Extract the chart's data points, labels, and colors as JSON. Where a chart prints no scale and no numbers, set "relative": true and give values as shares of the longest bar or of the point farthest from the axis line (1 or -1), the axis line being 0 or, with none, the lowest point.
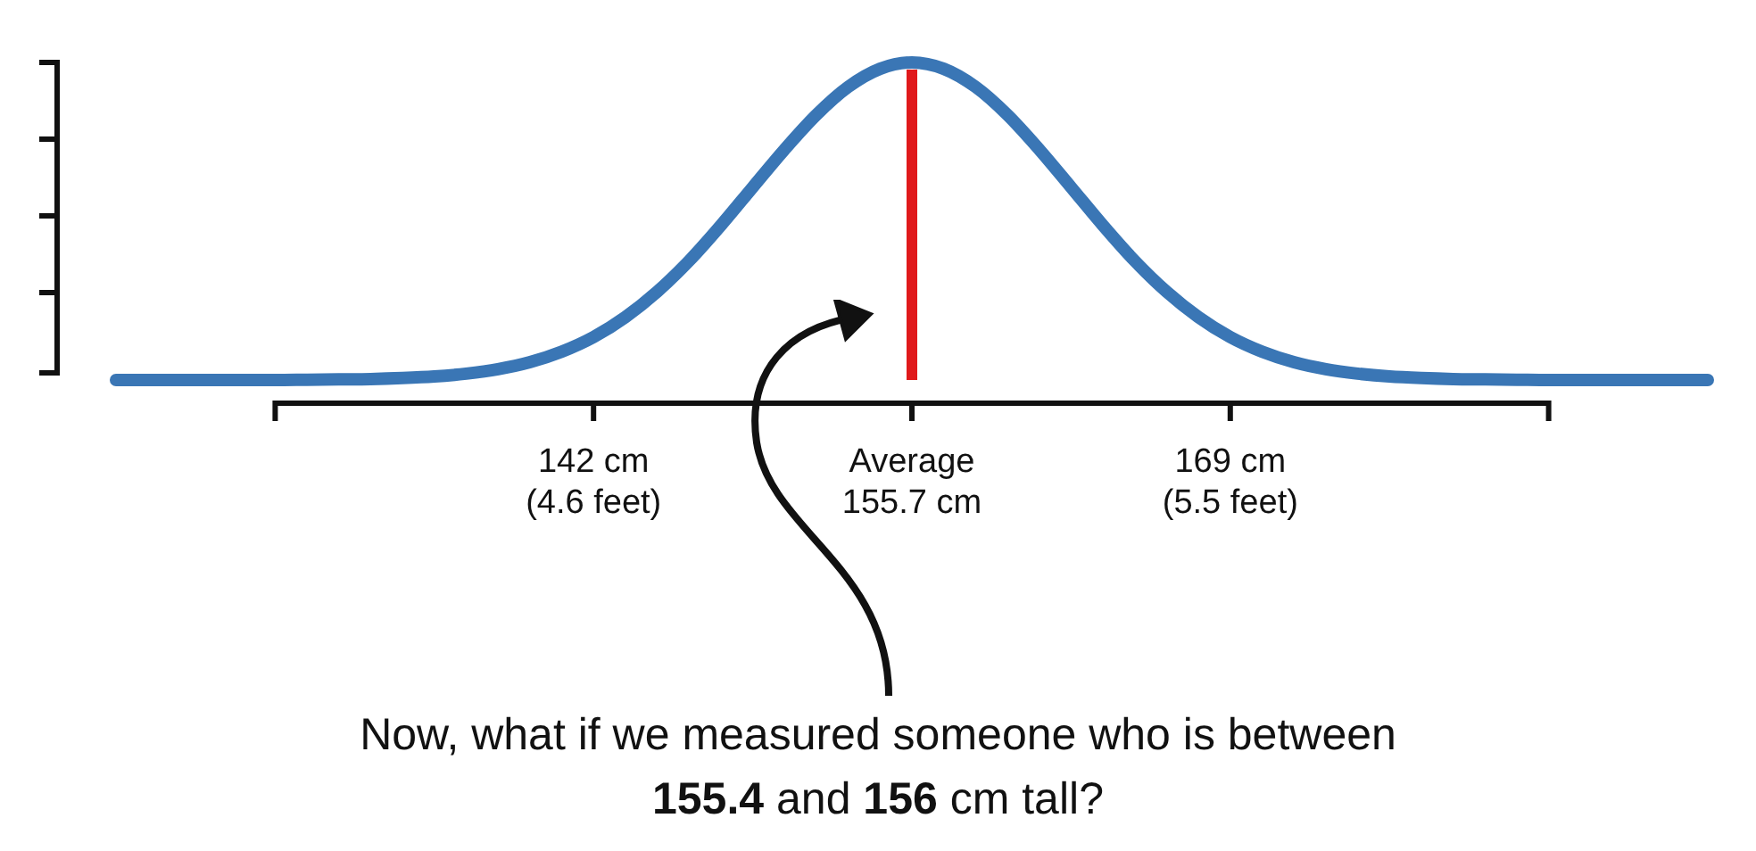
{
  "chart_data": {
    "type": "line",
    "relative": true,
    "legend": false,
    "categories": [
      null,
      null,
      null,
      null,
      null,
      null,
      null,
      null,
      null,
      null,
      null,
      null,
      null,
      null,
      null,
      "142 cm\n(4.6 feet)",
      null,
      null,
      null,
      null,
      null,
      null,
      null,
      null,
      null,
      "Average\n155.7 cm",
      null,
      null,
      null,
      null,
      null,
      null,
      null,
      null,
      null,
      "169 cm\n(5.5 feet)",
      null,
      null,
      null,
      null,
      null,
      null,
      null,
      null,
      null,
      null,
      null,
      null,
      null,
      null,
      null
    ],
    "series": [
      {
        "color": "#3a76b5",
        "values": [
          0,
          0,
          0,
          0,
          0,
          0,
          0.001,
          0.002,
          0.003,
          0.006,
          0.011,
          0.02,
          0.034,
          0.056,
          0.089,
          0.135,
          0.198,
          0.278,
          0.375,
          0.487,
          0.607,
          0.726,
          0.835,
          0.923,
          0.98,
          1,
          0.98,
          0.923,
          0.835,
          0.726,
          0.607,
          0.487,
          0.375,
          0.278,
          0.198,
          0.135,
          0.089,
          0.056,
          0.034,
          0.02,
          0.011,
          0.006,
          0.003,
          0.002,
          0.001,
          0,
          0,
          0,
          0,
          0,
          0
        ]
      }
    ],
    "ref_lines": [
      {
        "axis": "x",
        "value": "Average\n155.7 cm",
        "color": "#e0191b"
      }
    ],
    "annotations": [
      "Now, what if we measured someone who is between ",
      "155.4",
      " and ",
      "156",
      " cm tall?"
    ]
  }
}
